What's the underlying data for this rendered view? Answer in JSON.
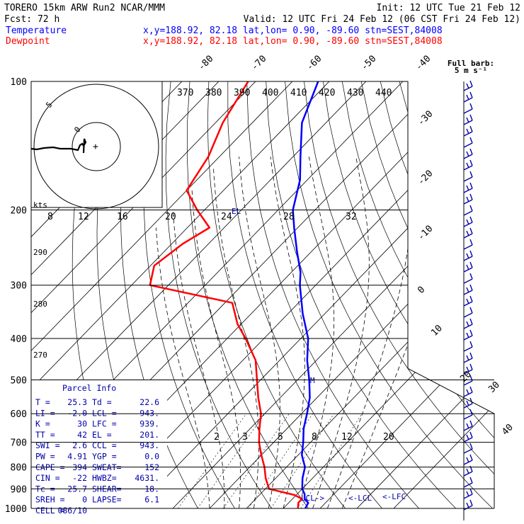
{
  "header": {
    "line1_left": "TORERO  15km ARW   Run2    NCAR/MMM",
    "line1_right": "Init: 12 UTC Tue 21 Feb 12",
    "line2_left": "Fcst:   72 h",
    "line2_right": "Valid: 12 UTC Fri 24 Feb 12 (06 CST Fri 24 Feb 12)",
    "temp_label": "Temperature",
    "dew_label": "Dewpoint",
    "temp_meta": "x,y=188.92, 82.18   lat,lon=  0.90, -89.60  stn=SEST,84008",
    "dew_meta": "x,y=188.92, 82.18   lat,lon=  0.90, -89.60  stn=SEST,84008"
  },
  "barb_key": {
    "line1": "Full barb:",
    "line2": "5 m s⁻¹"
  },
  "hodograph": {
    "units": "kts",
    "ring_labels": [
      "8",
      "12",
      "16",
      "20"
    ],
    "ring_marks": [
      "0",
      "5"
    ]
  },
  "colors": {
    "temperature": "#0000ff",
    "dewpoint": "#ff0000",
    "parcel_box": "#0000aa",
    "barbs": "#0000aa"
  },
  "parcel_info": {
    "title": "Parcel Info",
    "rows": [
      [
        "T   =",
        "25.3",
        "Td  =",
        "22.6"
      ],
      [
        "LI  =",
        "-2.0",
        "LCL =",
        "943."
      ],
      [
        "K   =",
        "30",
        "LFC =",
        "939."
      ],
      [
        "TT  =",
        "42",
        "EL  =",
        "201."
      ],
      [
        "SWI =",
        "2.6",
        "CCL =",
        "943."
      ],
      [
        "PW  =",
        "4.91",
        "YGP =",
        "0.0"
      ],
      [
        "CAPE =",
        "394",
        "SWEAT=",
        "152"
      ],
      [
        "CIN  =",
        "-22",
        "HWBZ=",
        "4631."
      ],
      [
        "Tc  =",
        "25.7",
        "SHEAR=",
        "18."
      ],
      [
        "SREH =",
        "0",
        "LAPSE=",
        "6.1"
      ],
      [
        "CELL =",
        "086/10",
        "",
        ""
      ]
    ]
  },
  "annotations": {
    "el": "EL",
    "m": "M",
    "lcl": "LCL->",
    "klcl": "<-LCL",
    "lfc": "<-LFC"
  },
  "chart_data": {
    "type": "line",
    "title": "",
    "skew_t": true,
    "pressure_axis": "log",
    "pressure_levels": [
      100,
      200,
      300,
      400,
      500,
      600,
      700,
      800,
      900,
      1000
    ],
    "isotherm_labels": [
      -80,
      -70,
      -60,
      -50,
      -40,
      -30,
      -20,
      -10,
      0,
      10,
      20,
      30,
      40
    ],
    "theta_labels": [
      370,
      380,
      390,
      400,
      410,
      420,
      430,
      440
    ],
    "mixing_ratio_labels_top": [
      8,
      12,
      16,
      20,
      24,
      28,
      32
    ],
    "mixing_ratio_labels_bottom": [
      2,
      3,
      5,
      8,
      12,
      20
    ],
    "dry_adiabat_labels": [
      290,
      280,
      270
    ],
    "series": [
      {
        "name": "Temperature",
        "pressure": [
          1000,
          970,
          950,
          925,
          900,
          850,
          800,
          750,
          700,
          650,
          600,
          550,
          500,
          450,
          400,
          350,
          300,
          280,
          250,
          220,
          200,
          170,
          150,
          125,
          100
        ],
        "values": [
          26.0,
          25.3,
          23.3,
          22.0,
          20.0,
          17.3,
          15.0,
          11.0,
          8.0,
          4.5,
          1.5,
          -2.0,
          -6.8,
          -12.5,
          -18.0,
          -26.0,
          -34.3,
          -37.5,
          -44.0,
          -51.0,
          -56.0,
          -62.0,
          -68.0,
          -76.5,
          -83.0
        ]
      },
      {
        "name": "Dewpoint",
        "pressure": [
          1000,
          970,
          950,
          930,
          900,
          850,
          800,
          750,
          700,
          650,
          600,
          550,
          500,
          450,
          400,
          370,
          330,
          300,
          270,
          240,
          220,
          200,
          180,
          150,
          125,
          100
        ],
        "values": [
          24.0,
          22.6,
          22.6,
          19.5,
          11.0,
          7.3,
          4.0,
          0.0,
          -4.0,
          -7.5,
          -11.0,
          -16.0,
          -21.0,
          -26.5,
          -35.0,
          -41.0,
          -48.0,
          -75.0,
          -79.0,
          -77.0,
          -74.0,
          -82.0,
          -90.0,
          -93.0,
          -98.0,
          -102.0
        ]
      }
    ]
  }
}
